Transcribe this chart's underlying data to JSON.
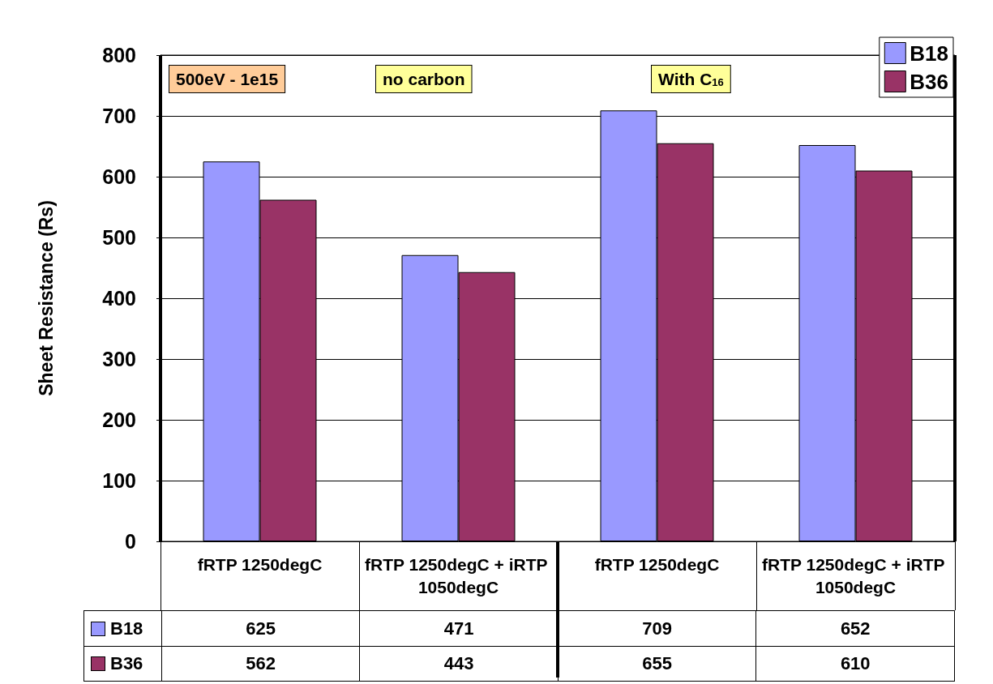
{
  "chart_data": {
    "type": "bar",
    "ylabel": "Sheet Resistance (Rs)",
    "categories": [
      "fRTP 1250degC",
      "fRTP 1250degC + iRTP 1050degC",
      "fRTP 1250degC",
      "fRTP 1250degC + iRTP 1050degC"
    ],
    "series": [
      {
        "name": "B18",
        "color": "#9999ff",
        "values": [
          625,
          471,
          709,
          652
        ]
      },
      {
        "name": "B36",
        "color": "#993366",
        "values": [
          562,
          443,
          655,
          610
        ]
      }
    ],
    "ylim": [
      0,
      800
    ],
    "yticks": [
      0,
      100,
      200,
      300,
      400,
      500,
      600,
      700,
      800
    ],
    "grid": "y",
    "legend": "top right",
    "data_labels": true,
    "annotations": [
      "500eV - 1e15",
      "no carbon",
      "With C$_{16}$"
    ]
  }
}
